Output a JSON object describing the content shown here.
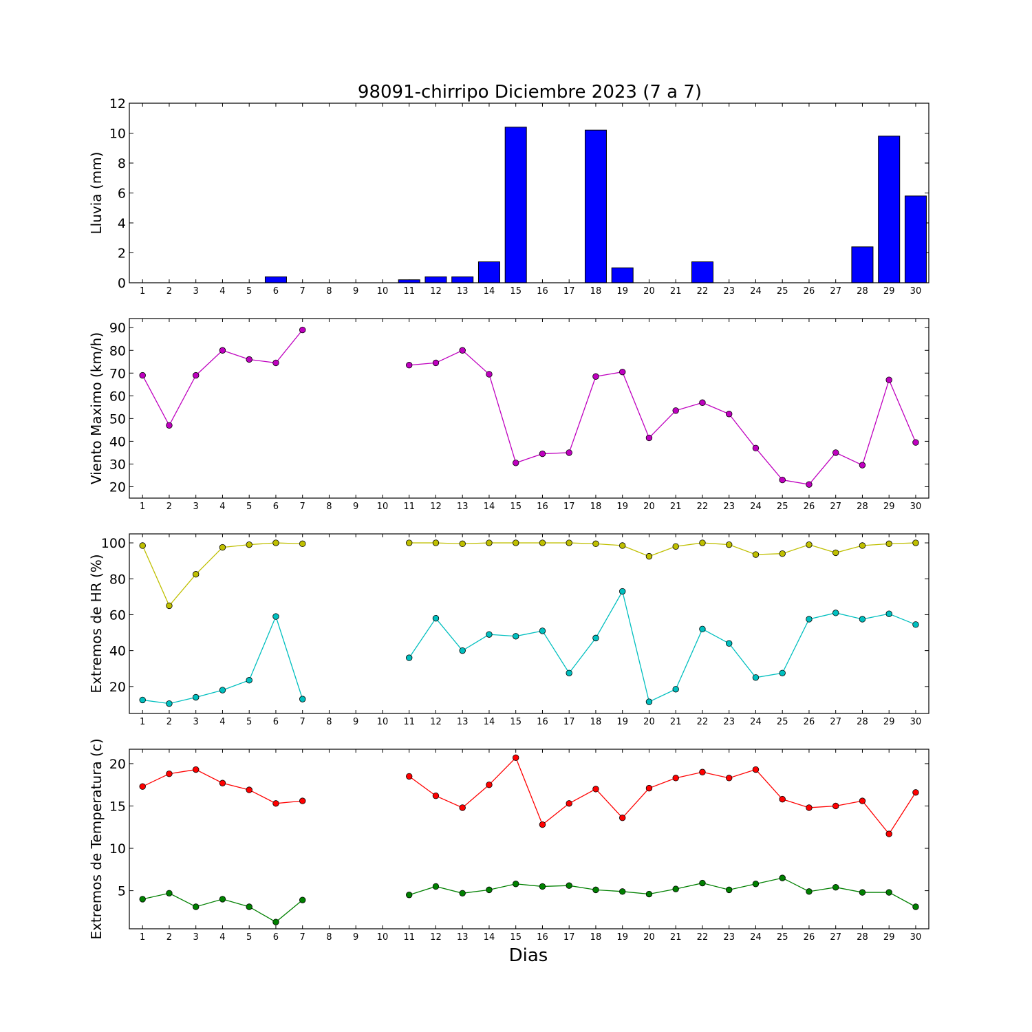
{
  "title": "98091-chirripo Diciembre 2023  (7 a 7)",
  "xlabel": "Dias",
  "chart_data": [
    {
      "type": "bar",
      "ylabel": "Lluvia (mm)",
      "ylim": [
        0,
        12
      ],
      "yticks": [
        0,
        2,
        4,
        6,
        8,
        10,
        12
      ],
      "color": "#0000ff",
      "x": [
        1,
        2,
        3,
        4,
        5,
        6,
        7,
        8,
        9,
        10,
        11,
        12,
        13,
        14,
        15,
        16,
        17,
        18,
        19,
        20,
        21,
        22,
        23,
        24,
        25,
        26,
        27,
        28,
        29,
        30
      ],
      "values": [
        0,
        0,
        0,
        0,
        0,
        0.4,
        0,
        0,
        0,
        0,
        0.2,
        0.4,
        0.4,
        1.4,
        10.4,
        0,
        0,
        10.2,
        1.0,
        0,
        0,
        1.4,
        0,
        0,
        0,
        0,
        0,
        2.4,
        9.8,
        5.8
      ]
    },
    {
      "type": "line",
      "ylabel": "Viento Maximo (km/h)",
      "ylim": [
        15,
        94
      ],
      "yticks": [
        20,
        30,
        40,
        50,
        60,
        70,
        80,
        90
      ],
      "series": [
        {
          "color": "#bf00bf",
          "values": [
            69,
            47,
            69,
            80,
            76,
            74.5,
            89,
            null,
            null,
            null,
            73.5,
            74.5,
            80,
            69.5,
            30.5,
            34.5,
            35,
            68.5,
            70.5,
            41.5,
            53.5,
            57,
            52,
            37,
            23,
            21,
            35,
            29.5,
            67,
            39.5
          ]
        }
      ]
    },
    {
      "type": "line",
      "ylabel": "Extremos de HR (%)",
      "ylim": [
        5,
        105
      ],
      "yticks": [
        20,
        40,
        60,
        80,
        100
      ],
      "series": [
        {
          "color": "#bfbf00",
          "values": [
            98.5,
            65,
            82.5,
            97.5,
            99,
            100,
            99.5,
            null,
            null,
            null,
            100,
            100,
            99.5,
            100,
            100,
            100,
            100,
            99.5,
            98.5,
            92.5,
            98,
            100,
            99,
            93.5,
            94,
            99,
            94.5,
            98.5,
            99.5,
            100
          ]
        },
        {
          "color": "#00bfbf",
          "values": [
            12.5,
            10.5,
            14,
            18,
            23.5,
            59,
            13,
            null,
            null,
            null,
            36,
            58,
            40,
            49,
            48,
            51,
            27.5,
            47,
            73,
            11.5,
            18.5,
            52,
            44,
            25,
            27.5,
            57.5,
            61,
            57.5,
            60.5,
            54.5
          ]
        }
      ]
    },
    {
      "type": "line",
      "ylabel": "Extremos de Temperatura (c)",
      "ylim": [
        0.5,
        21.7
      ],
      "yticks": [
        5,
        10,
        15,
        20
      ],
      "series": [
        {
          "color": "#ff0000",
          "values": [
            17.3,
            18.8,
            19.3,
            17.7,
            16.9,
            15.3,
            15.6,
            null,
            null,
            null,
            18.5,
            16.2,
            14.8,
            17.5,
            20.7,
            12.8,
            15.3,
            17,
            13.6,
            17.1,
            18.3,
            19,
            18.3,
            19.3,
            15.8,
            14.8,
            15,
            15.6,
            11.7,
            16.6
          ]
        },
        {
          "color": "#008000",
          "values": [
            4,
            4.7,
            3.1,
            4,
            3.1,
            1.3,
            3.9,
            null,
            null,
            null,
            4.5,
            5.5,
            4.7,
            5.1,
            5.8,
            5.5,
            5.6,
            5.1,
            4.9,
            4.6,
            5.2,
            5.9,
            5.1,
            5.8,
            6.5,
            4.9,
            5.4,
            4.8,
            4.8,
            3.1
          ]
        }
      ]
    }
  ]
}
